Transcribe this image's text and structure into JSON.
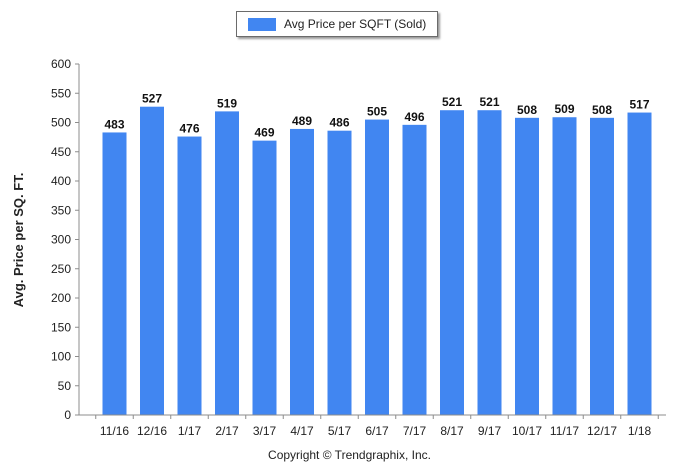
{
  "colors": {
    "bar": "#4186f1",
    "axis": "#8c8c8c",
    "grid": "#ffffff",
    "text": "#222222"
  },
  "legend": {
    "label": "Avg Price per SQFT (Sold)"
  },
  "footer": {
    "copyright": "Copyright © Trendgraphix, Inc."
  },
  "chart_data": {
    "type": "bar",
    "title": "",
    "xlabel": "",
    "ylabel": "Avg. Price per SQ. FT.",
    "ylim": [
      0,
      600
    ],
    "yticks": [
      0,
      50,
      100,
      150,
      200,
      250,
      300,
      350,
      400,
      450,
      500,
      550,
      600
    ],
    "legend_position": "top-center",
    "grid": false,
    "categories": [
      "11/16",
      "12/16",
      "1/17",
      "2/17",
      "3/17",
      "4/17",
      "5/17",
      "6/17",
      "7/17",
      "8/17",
      "9/17",
      "10/17",
      "11/17",
      "12/17",
      "1/18"
    ],
    "series": [
      {
        "name": "Avg Price per SQFT (Sold)",
        "values": [
          483,
          527,
          476,
          519,
          469,
          489,
          486,
          505,
          496,
          521,
          521,
          508,
          509,
          508,
          517
        ]
      }
    ]
  }
}
